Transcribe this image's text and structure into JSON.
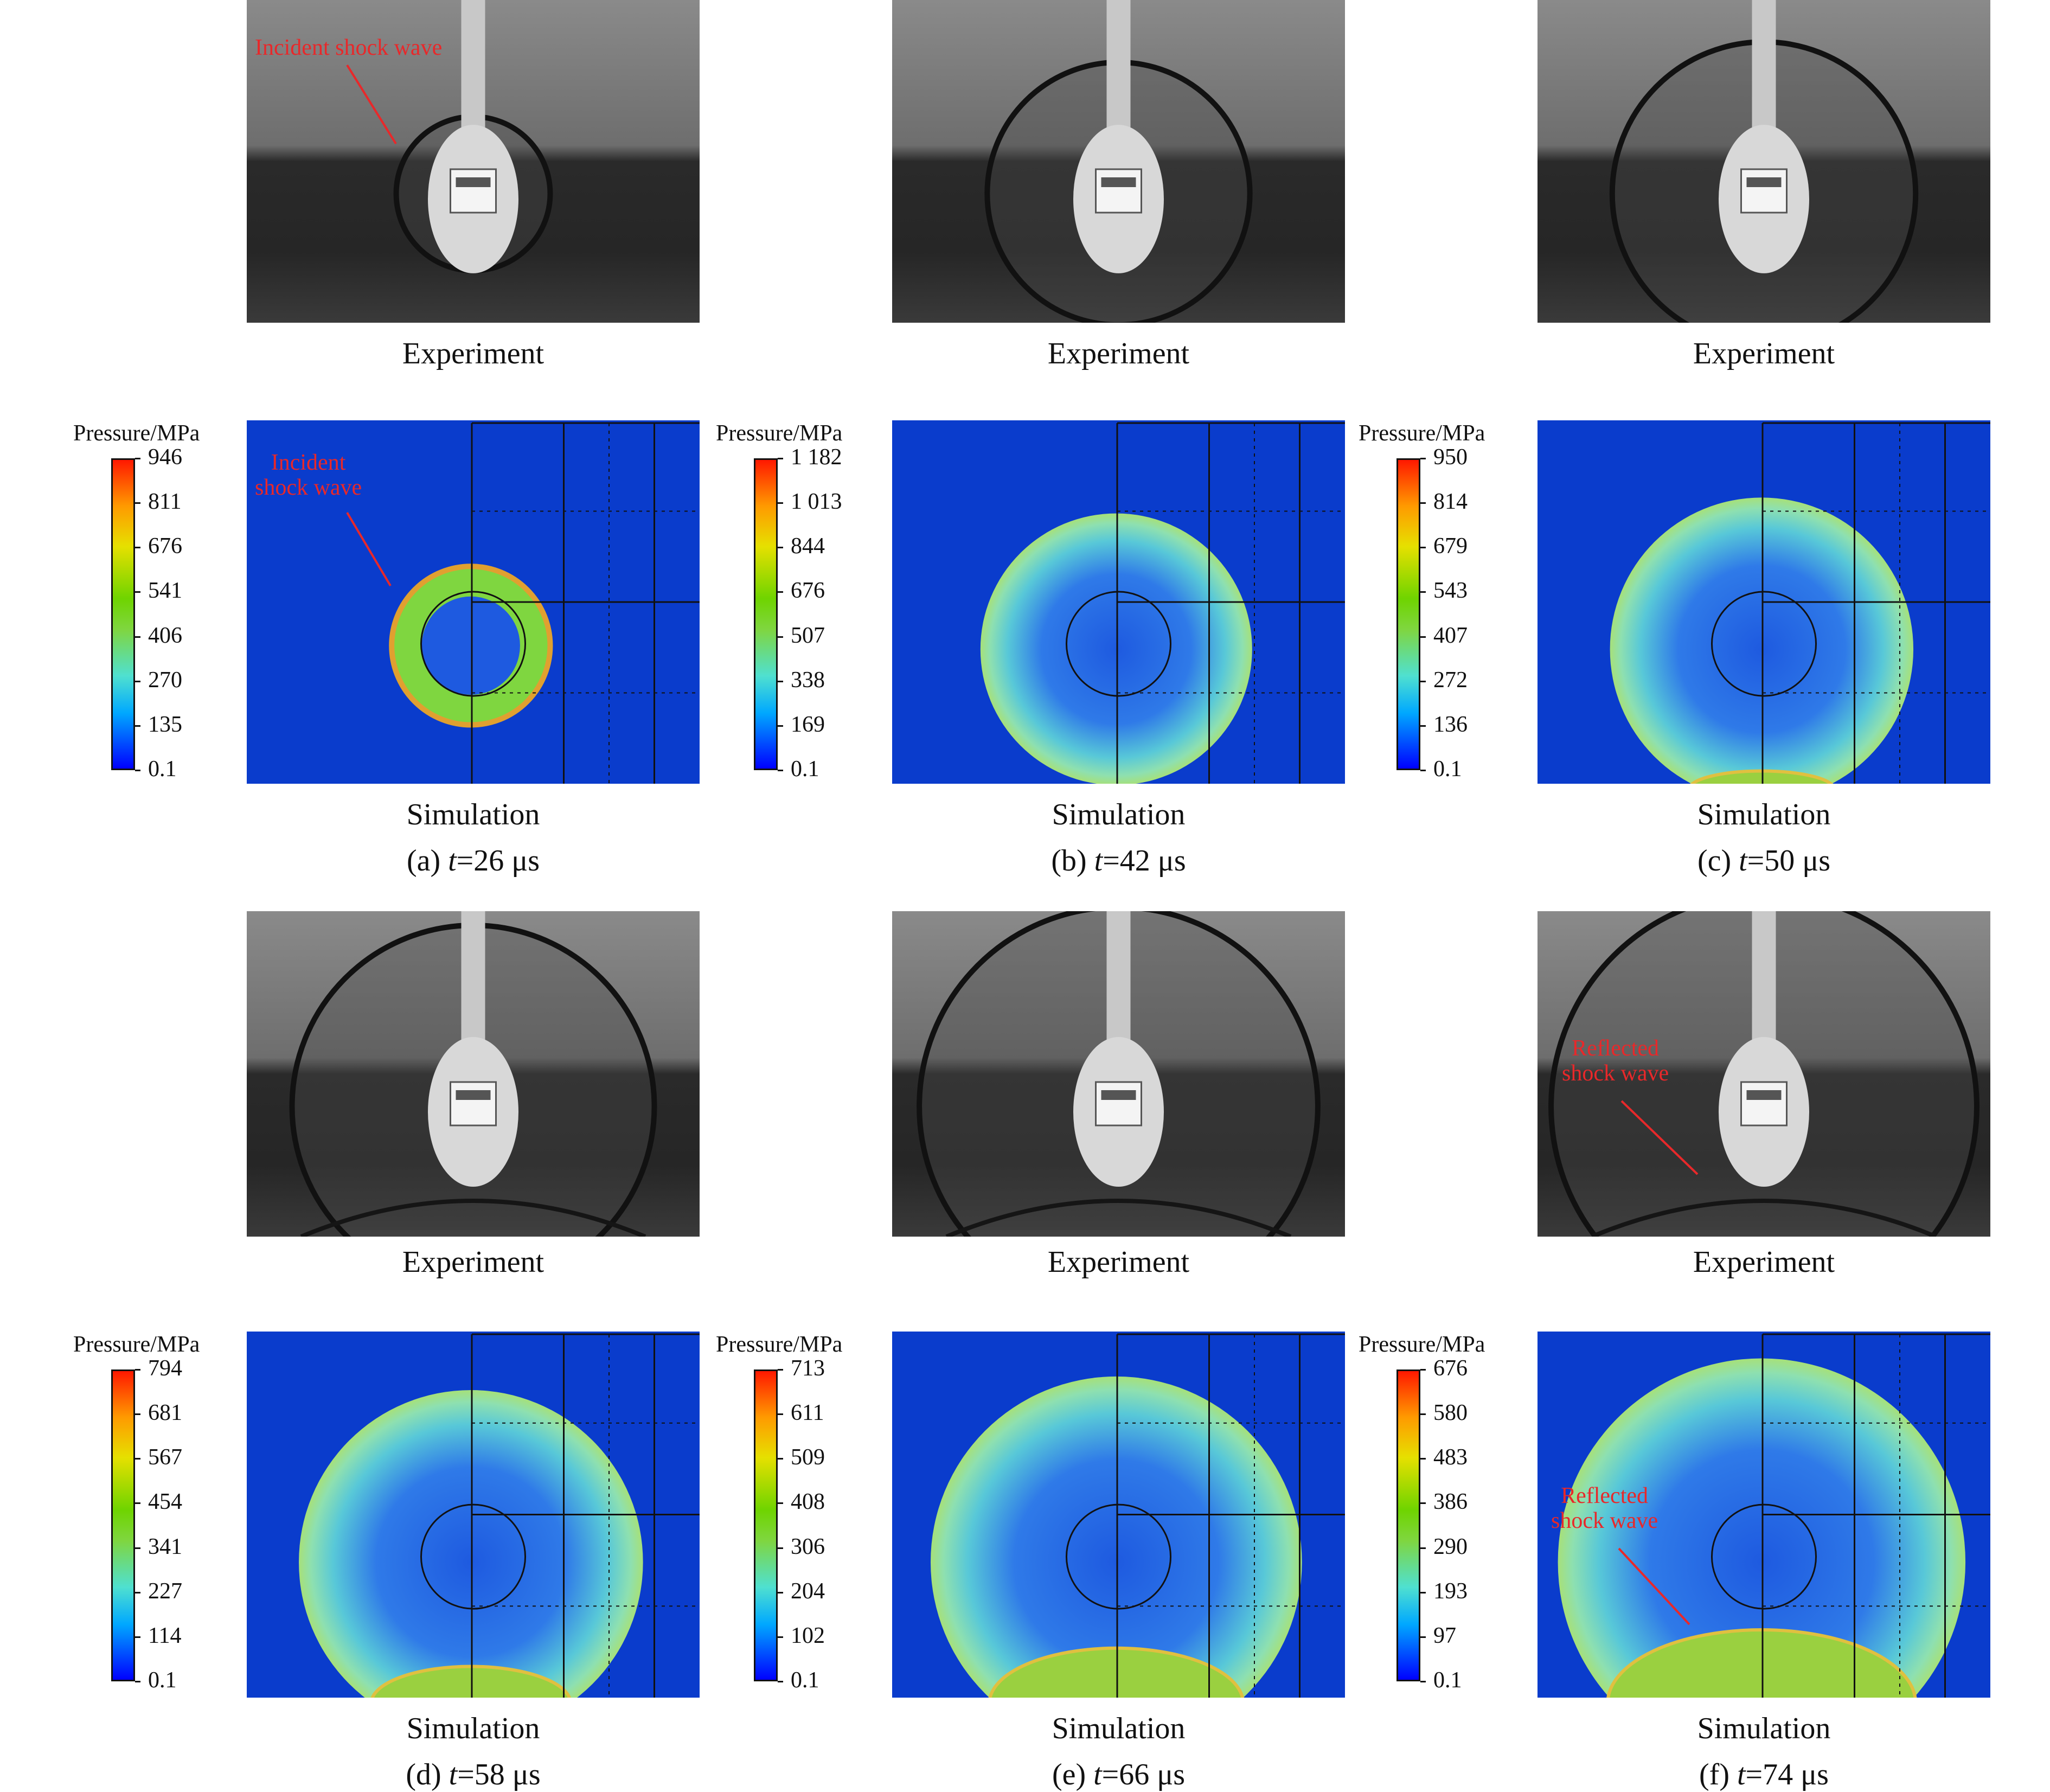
{
  "panels": [
    {
      "id": "a",
      "experiment_label": "Experiment",
      "simulation_label": "Simulation",
      "caption_prefix": "(a) ",
      "caption_var": "t",
      "caption_value": "=26 μs",
      "colorbar_title": "Pressure/MPa",
      "colorbar_ticks": [
        "946",
        "811",
        "676",
        "541",
        "406",
        "270",
        "135",
        "0.1"
      ],
      "exp_annotation": "Incident shock wave",
      "sim_annotation_line1": "Incident",
      "sim_annotation_line2": "shock wave"
    },
    {
      "id": "b",
      "experiment_label": "Experiment",
      "simulation_label": "Simulation",
      "caption_prefix": "(b) ",
      "caption_var": "t",
      "caption_value": "=42 μs",
      "colorbar_title": "Pressure/MPa",
      "colorbar_ticks": [
        "1 182",
        "1 013",
        "844",
        "676",
        "507",
        "338",
        "169",
        "0.1"
      ]
    },
    {
      "id": "c",
      "experiment_label": "Experiment",
      "simulation_label": "Simulation",
      "caption_prefix": "(c) ",
      "caption_var": "t",
      "caption_value": "=50 μs",
      "colorbar_title": "Pressure/MPa",
      "colorbar_ticks": [
        "950",
        "814",
        "679",
        "543",
        "407",
        "272",
        "136",
        "0.1"
      ]
    },
    {
      "id": "d",
      "experiment_label": "Experiment",
      "simulation_label": "Simulation",
      "caption_prefix": "(d) ",
      "caption_var": "t",
      "caption_value": "=58 μs",
      "colorbar_title": "Pressure/MPa",
      "colorbar_ticks": [
        "794",
        "681",
        "567",
        "454",
        "341",
        "227",
        "114",
        "0.1"
      ]
    },
    {
      "id": "e",
      "experiment_label": "Experiment",
      "simulation_label": "Simulation",
      "caption_prefix": "(e) ",
      "caption_var": "t",
      "caption_value": "=66 μs",
      "colorbar_title": "Pressure/MPa",
      "colorbar_ticks": [
        "713",
        "611",
        "509",
        "408",
        "306",
        "204",
        "102",
        "0.1"
      ]
    },
    {
      "id": "f",
      "experiment_label": "Experiment",
      "simulation_label": "Simulation",
      "caption_prefix": "(f) ",
      "caption_var": "t",
      "caption_value": "=74 μs",
      "colorbar_title": "Pressure/MPa",
      "colorbar_ticks": [
        "676",
        "580",
        "483",
        "386",
        "290",
        "193",
        "97",
        "0.1"
      ],
      "exp_annotation_line1": "Reflected",
      "exp_annotation_line2": "shock wave",
      "sim_annotation_line1": "Reflected",
      "sim_annotation_line2": "shock wave"
    }
  ],
  "colors": {
    "background_blue": "#0a3ccc",
    "annotation_red": "#e8282a"
  }
}
